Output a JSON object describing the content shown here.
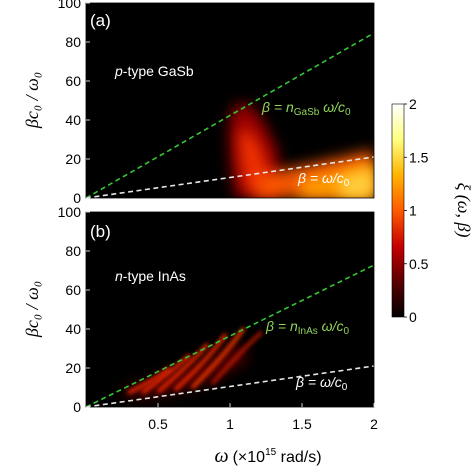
{
  "chart_data": [
    {
      "type": "heatmap",
      "panel_label": "(a)",
      "material_label": {
        "prefix": "p",
        "rest": "-type GaSb"
      },
      "ylabel": "βc₀ / ω₀",
      "xlim": [
        0,
        2
      ],
      "ylim": [
        0,
        100
      ],
      "y_ticks": [
        "0",
        "20",
        "40",
        "60",
        "80",
        "100"
      ],
      "lines": [
        {
          "label_main": "β = n",
          "label_sub": "GaSb",
          "label_tail": " ω/c",
          "label_tail_sub": "0",
          "slope": 42,
          "color": "#35c535"
        },
        {
          "label_main": "β = ω/c",
          "label_sub": "0",
          "slope": 10.5,
          "color": "#e6e6e6"
        }
      ],
      "regions": [
        {
          "omega": 1.1,
          "beta_low": 12,
          "beta_high": 36,
          "intensity": 0.85
        },
        {
          "omega": 1.5,
          "beta_low": 14,
          "beta_high": 25,
          "intensity": 0.9
        },
        {
          "omega": 2.0,
          "beta_low": 0,
          "beta_high": 22,
          "intensity": 1.6
        }
      ]
    },
    {
      "type": "heatmap",
      "panel_label": "(b)",
      "material_label": {
        "prefix": "n",
        "rest": "-type InAs"
      },
      "ylabel": "βc₀ / ω₀",
      "xlabel_main": "ω",
      "xlabel_rest": "(×10",
      "xlabel_sup": "15",
      "xlabel_tail": " rad/s)",
      "xlim": [
        0,
        2
      ],
      "ylim": [
        0,
        100
      ],
      "x_ticks": [
        "0.5",
        "1",
        "1.5",
        "2"
      ],
      "y_ticks": [
        "0",
        "20",
        "40",
        "60",
        "80",
        "100"
      ],
      "lines": [
        {
          "label_main": "β = n",
          "label_sub": "InAs",
          "label_tail": " ω/c",
          "label_tail_sub": "0",
          "slope": 36.5,
          "color": "#35c535"
        },
        {
          "label_main": "β = ω/c",
          "label_sub": "0",
          "slope": 10.5,
          "color": "#e6e6e6"
        }
      ],
      "regions": [
        {
          "omega": 0.65,
          "beta_low": 8,
          "beta_high": 14,
          "intensity": 0.9
        },
        {
          "omega": 1.1,
          "beta_low": 11,
          "beta_high": 36,
          "intensity": 0.95
        },
        {
          "omega": 1.3,
          "beta_low": 14,
          "beta_high": 30,
          "intensity": 0.6
        }
      ]
    }
  ],
  "colorbar": {
    "label": "ξ (ω, β)",
    "range": [
      0,
      2
    ],
    "ticks": [
      "0",
      "0.5",
      "1",
      "1.5",
      "2"
    ],
    "colors": [
      "#000000",
      "#5a0000",
      "#c80000",
      "#ff5a00",
      "#ffb400",
      "#ffff80",
      "#ffffff"
    ]
  }
}
